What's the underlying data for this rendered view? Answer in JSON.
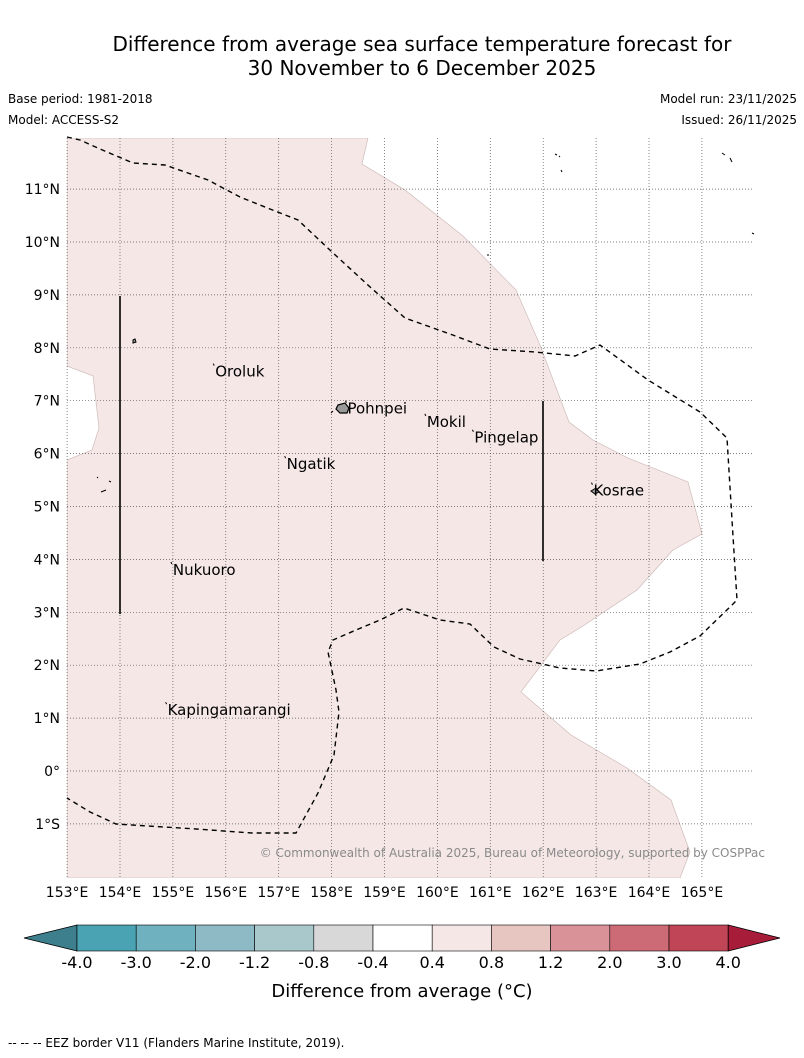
{
  "header": {
    "title_line1": "Difference from average sea surface temperature forecast for",
    "title_line2": "30 November to 6 December 2025",
    "base_period": "Base period: 1981-2018",
    "model": "Model: ACCESS-S2",
    "model_run": "Model run: 23/11/2025",
    "issued": "Issued: 26/11/2025"
  },
  "map": {
    "lat_labels": [
      "11°N",
      "10°N",
      "9°N",
      "8°N",
      "7°N",
      "6°N",
      "5°N",
      "4°N",
      "3°N",
      "2°N",
      "1°N",
      "0°",
      "1°S"
    ],
    "lon_labels": [
      "153°E",
      "154°E",
      "155°E",
      "156°E",
      "157°E",
      "158°E",
      "159°E",
      "160°E",
      "161°E",
      "162°E",
      "163°E",
      "164°E",
      "165°E"
    ],
    "places": [
      {
        "name": "Oroluk",
        "lon": 155.8,
        "lat": 7.55
      },
      {
        "name": "Pohnpei",
        "lon": 158.3,
        "lat": 6.85
      },
      {
        "name": "Mokil",
        "lon": 159.8,
        "lat": 6.6
      },
      {
        "name": "Pingelap",
        "lon": 160.7,
        "lat": 6.3
      },
      {
        "name": "Ngatik",
        "lon": 157.15,
        "lat": 5.8
      },
      {
        "name": "Kosrae",
        "lon": 162.95,
        "lat": 5.3
      },
      {
        "name": "Nukuoro",
        "lon": 155.0,
        "lat": 3.8
      },
      {
        "name": "Kapingamarangi",
        "lon": 154.9,
        "lat": 1.15
      }
    ],
    "shading_color": "#f4e7e6",
    "copyright": "© Commonwealth of Australia 2025, Bureau of Meteorology, supported by COSPPac"
  },
  "colorbar": {
    "ticks": [
      "-4.0",
      "-3.0",
      "-2.0",
      "-1.2",
      "-0.8",
      "-0.4",
      "0.4",
      "0.8",
      "1.2",
      "2.0",
      "3.0",
      "4.0"
    ],
    "colors": [
      "#4aa3b3",
      "#6fb1bf",
      "#8dbac5",
      "#a8c8cc",
      "#d8d8d8",
      "#ffffff",
      "#f4e7e6",
      "#e7c6c1",
      "#d99297",
      "#cc6b75",
      "#c04556"
    ],
    "under_color": "#3e7f8d",
    "over_color": "#a61c39",
    "label": "Difference from average (°C)"
  },
  "footnote": "--  --  -- EEZ border V11 (Flanders Marine Institute, 2019)."
}
